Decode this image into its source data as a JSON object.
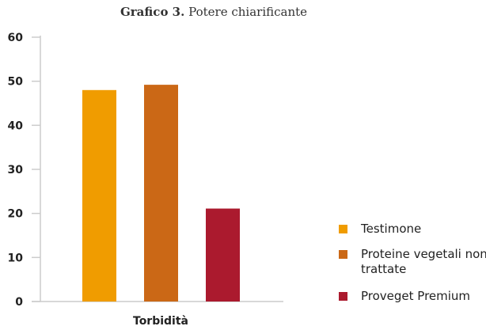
{
  "chart_data": {
    "type": "bar",
    "title_bold": "Grafico 3.",
    "title": "Potere chiarificante",
    "categories": [
      "Torbidità"
    ],
    "series": [
      {
        "name": "Testimone",
        "values": [
          48
        ],
        "color": "#f09c00"
      },
      {
        "name": "Proteine vegetali non trattate",
        "values": [
          49.2
        ],
        "color": "#cb6816"
      },
      {
        "name": "Proveget Premium",
        "values": [
          21.1
        ],
        "color": "#ab1a2e"
      }
    ],
    "ylim": [
      0,
      60
    ],
    "yticks": [
      0,
      10,
      20,
      30,
      40,
      50,
      60
    ],
    "grid": false,
    "legend": "right"
  }
}
